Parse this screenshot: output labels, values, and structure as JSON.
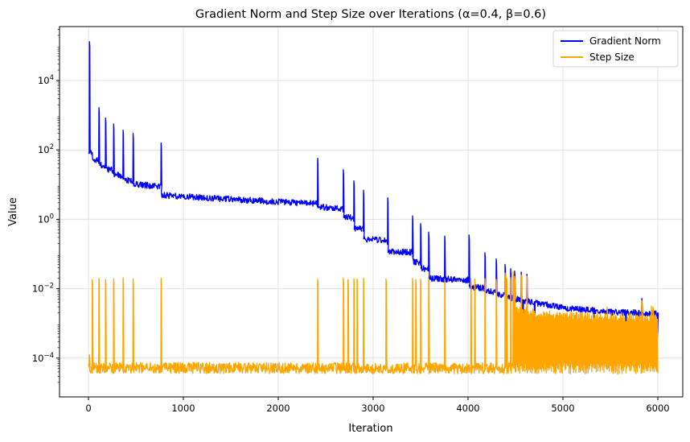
{
  "chart_data": {
    "type": "line",
    "title": "Gradient Norm and Step Size over Iterations (α=0.4, β=0.6)",
    "x_axis": {
      "label": "Iteration",
      "ticks": [
        0,
        1000,
        2000,
        3000,
        4000,
        5000,
        6000
      ],
      "range": [
        -300,
        6300
      ]
    },
    "y_axis": {
      "label": "Value",
      "scale": "log",
      "tick_exponents": [
        4,
        2,
        0,
        -2,
        -4
      ],
      "range_log10": [
        -5.12,
        5.55
      ]
    },
    "grid": true,
    "grid_color": "#e0e0e0",
    "spine_color": "#000000",
    "legend": {
      "position": "upper right",
      "border_color": "#d5d5d5",
      "entries": [
        {
          "label": "Gradient Norm",
          "color": "#0000ff"
        },
        {
          "label": "Step Size",
          "color": "#ffa500"
        }
      ]
    },
    "series": [
      {
        "name": "Gradient Norm",
        "color": "#0000ff",
        "band_halfwidth_log": 0.09,
        "baseline_log": [
          [
            0,
            1.95
          ],
          [
            40,
            1.88
          ],
          [
            44,
            1.73
          ],
          [
            110,
            1.69
          ],
          [
            114,
            1.59
          ],
          [
            180,
            1.53
          ],
          [
            184,
            1.46
          ],
          [
            265,
            1.4
          ],
          [
            269,
            1.3
          ],
          [
            365,
            1.24
          ],
          [
            369,
            1.15
          ],
          [
            470,
            1.1
          ],
          [
            474,
            1.02
          ],
          [
            765,
            0.94
          ],
          [
            769,
            0.7
          ],
          [
            1600,
            0.56
          ],
          [
            2412,
            0.45
          ],
          [
            2418,
            0.36
          ],
          [
            2683,
            0.3
          ],
          [
            2689,
            0.08
          ],
          [
            2794,
            0.04
          ],
          [
            2800,
            -0.25
          ],
          [
            2895,
            -0.28
          ],
          [
            2901,
            -0.57
          ],
          [
            3150,
            -0.6
          ],
          [
            3156,
            -0.92
          ],
          [
            3412,
            -0.95
          ],
          [
            3418,
            -1.22
          ],
          [
            3497,
            -1.25
          ],
          [
            3503,
            -1.41
          ],
          [
            3582,
            -1.44
          ],
          [
            3588,
            -1.7
          ],
          [
            4007,
            -1.75
          ],
          [
            4013,
            -1.95
          ],
          [
            4175,
            -1.98
          ],
          [
            4181,
            -2.07
          ],
          [
            4294,
            -2.09
          ],
          [
            4300,
            -2.16
          ],
          [
            4405,
            -2.18
          ],
          [
            4411,
            -2.25
          ],
          [
            4500,
            -2.3
          ],
          [
            5000,
            -2.55
          ],
          [
            5500,
            -2.67
          ],
          [
            6000,
            -2.72
          ]
        ],
        "spikes_log": [
          [
            10,
            5.12
          ],
          [
            110,
            3.22
          ],
          [
            180,
            2.92
          ],
          [
            265,
            2.75
          ],
          [
            365,
            2.57
          ],
          [
            470,
            2.48
          ],
          [
            765,
            2.2
          ],
          [
            2415,
            1.76
          ],
          [
            2686,
            1.43
          ],
          [
            2797,
            1.11
          ],
          [
            2898,
            0.84
          ],
          [
            3153,
            0.62
          ],
          [
            3415,
            0.1
          ],
          [
            3500,
            -0.12
          ],
          [
            3585,
            -0.37
          ],
          [
            3754,
            -0.48
          ],
          [
            4010,
            -0.45
          ],
          [
            4178,
            -0.96
          ],
          [
            4297,
            -1.14
          ],
          [
            4390,
            -1.3
          ],
          [
            4449,
            -1.42
          ],
          [
            4491,
            -1.49
          ],
          [
            4560,
            -1.52
          ],
          [
            4620,
            -1.58
          ],
          [
            5831,
            -2.28
          ]
        ],
        "dips_log": [
          [
            4576,
            -3.46
          ],
          [
            4700,
            -3.2
          ],
          [
            5322,
            -3.5
          ],
          [
            5661,
            -3.55
          ],
          [
            5805,
            -3.65
          ],
          [
            5996,
            -3.4
          ]
        ]
      },
      {
        "name": "Step Size",
        "color": "#ffa500",
        "band_halfwidth_log": 0.16,
        "baseline_log": [
          [
            0,
            -4.28
          ],
          [
            6000,
            -4.3
          ]
        ],
        "spikes_log": [
          [
            10,
            -3.9
          ],
          [
            40,
            -1.74
          ],
          [
            110,
            -1.7
          ],
          [
            180,
            -1.73
          ],
          [
            265,
            -1.71
          ],
          [
            365,
            -1.69
          ],
          [
            470,
            -1.72
          ],
          [
            765,
            -1.7
          ],
          [
            2415,
            -1.72
          ],
          [
            2686,
            -1.7
          ],
          [
            2735,
            -1.73
          ],
          [
            2797,
            -1.71
          ],
          [
            2831,
            -1.72
          ],
          [
            2898,
            -1.7
          ],
          [
            3136,
            -1.72
          ],
          [
            3415,
            -1.7
          ],
          [
            3449,
            -1.73
          ],
          [
            3500,
            -1.72
          ],
          [
            3585,
            -1.71
          ],
          [
            3754,
            -1.72
          ],
          [
            4030,
            -1.7
          ],
          [
            4070,
            -1.72
          ],
          [
            4178,
            -1.71
          ],
          [
            4297,
            -1.73
          ],
          [
            4390,
            -1.55
          ],
          [
            4407,
            -1.7
          ],
          [
            4449,
            -1.68
          ],
          [
            4475,
            -1.5
          ],
          [
            4491,
            -1.65
          ],
          [
            4560,
            -1.6
          ],
          [
            4620,
            -1.64
          ]
        ],
        "dense_from": 4490,
        "dense_top_log": [
          [
            4490,
            -2.6
          ],
          [
            4800,
            -2.75
          ],
          [
            5200,
            -2.8
          ],
          [
            6000,
            -2.85
          ]
        ],
        "dense_spikes_log": [
          [
            5466,
            -2.53
          ],
          [
            5831,
            -2.35
          ],
          [
            5932,
            -2.5
          ],
          [
            5949,
            -2.53
          ]
        ]
      }
    ]
  }
}
